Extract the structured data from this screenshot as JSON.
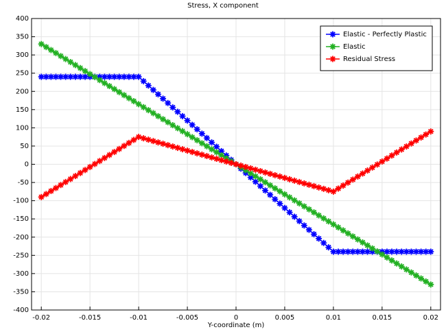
{
  "chart_data": {
    "type": "line",
    "title": "Stress, X component",
    "xlabel": "Y-coordinate (m)",
    "x": [
      -0.02,
      -0.0195,
      -0.019,
      -0.0185,
      -0.018,
      -0.0175,
      -0.017,
      -0.0165,
      -0.016,
      -0.0155,
      -0.015,
      -0.0145,
      -0.014,
      -0.0135,
      -0.013,
      -0.0125,
      -0.012,
      -0.0115,
      -0.011,
      -0.0105,
      -0.01,
      -0.0095,
      -0.009,
      -0.0085,
      -0.008,
      -0.0075,
      -0.007,
      -0.0065,
      -0.006,
      -0.0055,
      -0.005,
      -0.0045,
      -0.004,
      -0.0035,
      -0.003,
      -0.0025,
      -0.002,
      -0.0015,
      -0.001,
      -0.0005,
      0,
      0.0005,
      0.001,
      0.0015,
      0.002,
      0.0025,
      0.003,
      0.0035,
      0.004,
      0.0045,
      0.005,
      0.0055,
      0.006,
      0.0065,
      0.007,
      0.0075,
      0.008,
      0.0085,
      0.009,
      0.0095,
      0.01,
      0.0105,
      0.011,
      0.0115,
      0.012,
      0.0125,
      0.013,
      0.0135,
      0.014,
      0.0145,
      0.015,
      0.0155,
      0.016,
      0.0165,
      0.017,
      0.0175,
      0.018,
      0.0185,
      0.019,
      0.0195,
      0.02
    ],
    "series": [
      {
        "name": "Elastic - Perfectly Plastic",
        "color": "#0000ff",
        "values": [
          240,
          240,
          240,
          240,
          240,
          240,
          240,
          240,
          240,
          240,
          240,
          240,
          240,
          240,
          240,
          240,
          240,
          240,
          240,
          240,
          240,
          228,
          216,
          204,
          192,
          180,
          168,
          156,
          144,
          132,
          120,
          108,
          96,
          84,
          72,
          60,
          48,
          36,
          24,
          12,
          0,
          -12,
          -24,
          -36,
          -48,
          -60,
          -72,
          -84,
          -96,
          -108,
          -120,
          -132,
          -144,
          -156,
          -168,
          -180,
          -192,
          -204,
          -216,
          -228,
          -240,
          -240,
          -240,
          -240,
          -240,
          -240,
          -240,
          -240,
          -240,
          -240,
          -240,
          -240,
          -240,
          -240,
          -240,
          -240,
          -240,
          -240,
          -240,
          -240,
          -240
        ]
      },
      {
        "name": "Elastic",
        "color": "#22b022",
        "values": [
          330,
          321.75,
          313.5,
          305.25,
          297,
          288.75,
          280.5,
          272.25,
          264,
          255.75,
          247.5,
          239.25,
          231,
          222.75,
          214.5,
          206.25,
          198,
          189.75,
          181.5,
          173.25,
          165,
          156.75,
          148.5,
          140.25,
          132,
          123.75,
          115.5,
          107.25,
          99,
          90.75,
          82.5,
          74.25,
          66,
          57.75,
          49.5,
          41.25,
          33,
          24.75,
          16.5,
          8.25,
          0,
          -8.25,
          -16.5,
          -24.75,
          -33,
          -41.25,
          -49.5,
          -57.75,
          -66,
          -74.25,
          -82.5,
          -90.75,
          -99,
          -107.25,
          -115.5,
          -123.75,
          -132,
          -140.25,
          -148.5,
          -156.75,
          -165,
          -173.25,
          -181.5,
          -189.75,
          -198,
          -206.25,
          -214.5,
          -222.75,
          -231,
          -239.25,
          -247.5,
          -255.75,
          -264,
          -272.25,
          -280.5,
          -288.75,
          -297,
          -305.25,
          -313.5,
          -321.75,
          -330
        ]
      },
      {
        "name": "Residual Stress",
        "color": "#ff0000",
        "values": [
          -90,
          -81.75,
          -73.5,
          -65.25,
          -57,
          -48.75,
          -40.5,
          -32.25,
          -24,
          -15.75,
          -7.5,
          0.75,
          9,
          17.25,
          25.5,
          33.75,
          42,
          50.25,
          58.5,
          66.75,
          75,
          71.25,
          67.5,
          63.75,
          60,
          56.25,
          52.5,
          48.75,
          45,
          41.25,
          37.5,
          33.75,
          30,
          26.25,
          22.5,
          18.75,
          15,
          11.25,
          7.5,
          3.75,
          0,
          -3.75,
          -7.5,
          -11.25,
          -15,
          -18.75,
          -22.5,
          -26.25,
          -30,
          -33.75,
          -37.5,
          -41.25,
          -45,
          -48.75,
          -52.5,
          -56.25,
          -60,
          -63.75,
          -67.5,
          -71.25,
          -75,
          -66.75,
          -58.5,
          -50.25,
          -42,
          -33.75,
          -25.5,
          -17.25,
          -9,
          -0.75,
          7.5,
          15.75,
          24,
          32.25,
          40.5,
          48.75,
          57,
          65.25,
          73.5,
          81.75,
          90
        ]
      }
    ],
    "xlim": [
      -0.021,
      0.021
    ],
    "ylim": [
      -400,
      400
    ],
    "xticks": [
      -0.02,
      -0.015,
      -0.01,
      -0.005,
      0,
      0.005,
      0.01,
      0.015,
      0.02
    ],
    "yticks": [
      -400,
      -350,
      -300,
      -250,
      -200,
      -150,
      -100,
      -50,
      0,
      50,
      100,
      150,
      200,
      250,
      300,
      350,
      400
    ],
    "grid": true,
    "legend": "upper right"
  }
}
